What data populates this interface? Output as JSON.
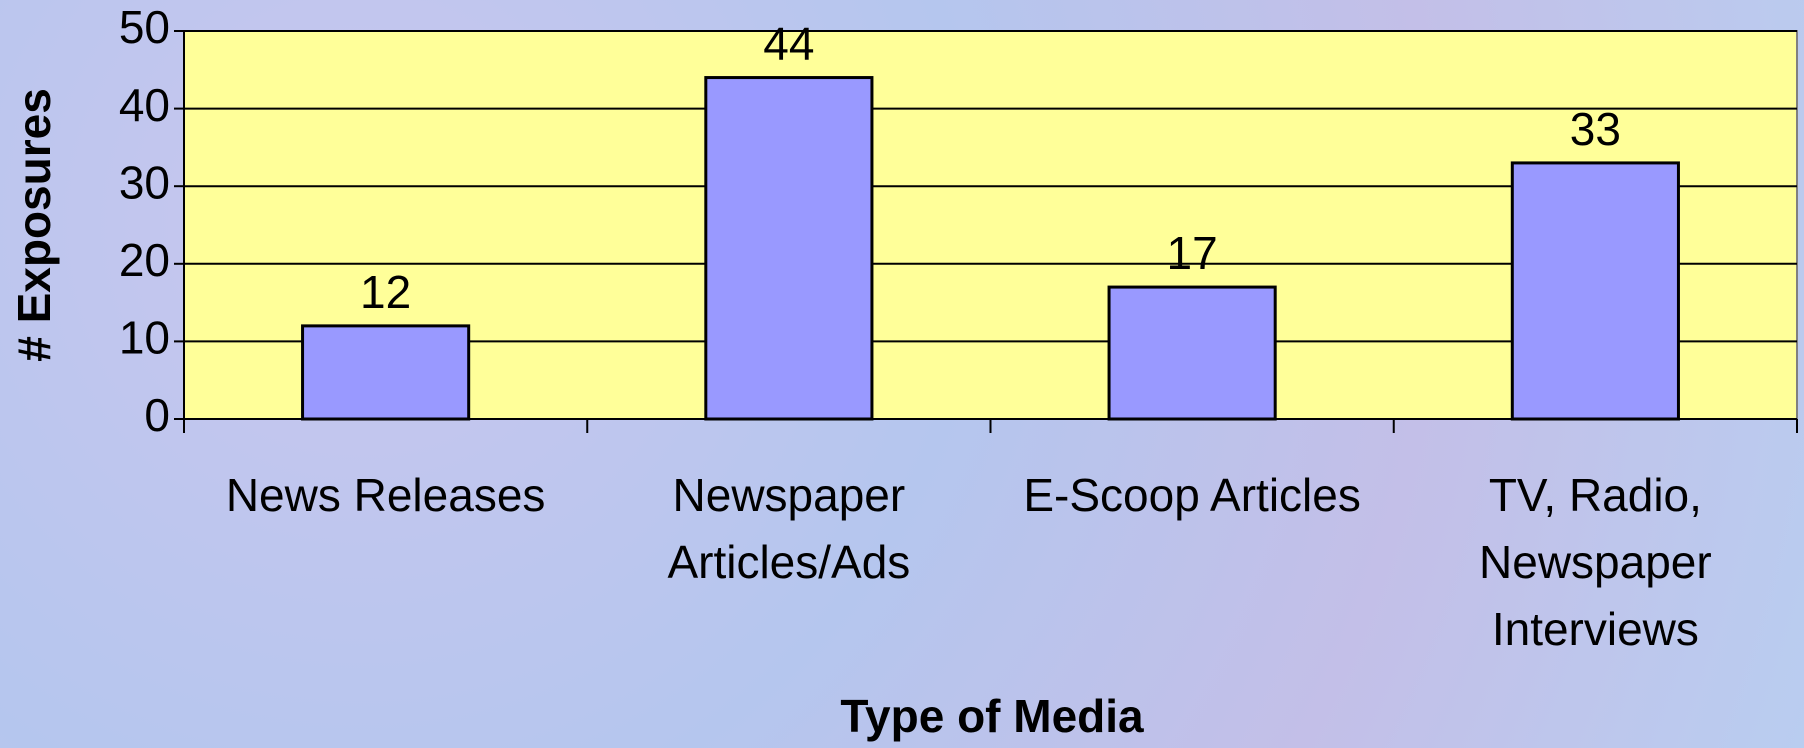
{
  "chart_data": {
    "type": "bar",
    "categories": [
      "News Releases",
      "Newspaper Articles/Ads",
      "E-Scoop Articles",
      "TV, Radio, Newspaper Interviews"
    ],
    "values": [
      12,
      44,
      17,
      33
    ],
    "color": "#9999ff",
    "plot_color": "#ffff99",
    "xlabel": "Type of Media",
    "ylabel": "# Exposures",
    "ylim": [
      0,
      50
    ],
    "yticks": [
      0,
      10,
      20,
      30,
      40,
      50
    ],
    "grid": true
  }
}
